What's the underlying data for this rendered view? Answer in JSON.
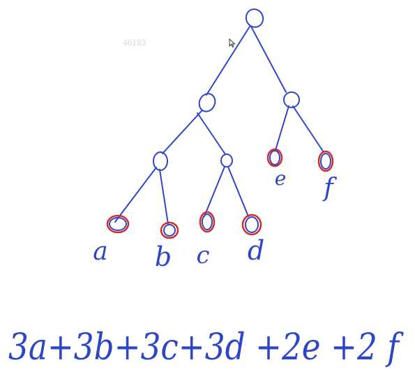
{
  "watermark_id": "46183",
  "colors": {
    "ink": "#2f45c8",
    "highlight": "#d42a2a"
  },
  "tree": {
    "internal_nodes": [
      "root",
      "n-left",
      "n-right",
      "n-left-left",
      "n-left-right"
    ],
    "leaves": [
      {
        "id": "a",
        "label": "a",
        "highlighted": true
      },
      {
        "id": "b",
        "label": "b",
        "highlighted": true
      },
      {
        "id": "c",
        "label": "c",
        "highlighted": true
      },
      {
        "id": "d",
        "label": "d",
        "highlighted": true
      },
      {
        "id": "e",
        "label": "e",
        "highlighted": true
      },
      {
        "id": "f",
        "label": "f",
        "highlighted": true
      }
    ]
  },
  "formula": "3a+3b+3c+3d +2e +2 f"
}
